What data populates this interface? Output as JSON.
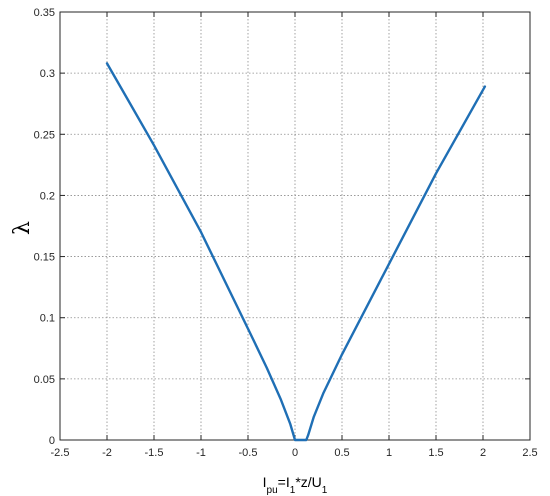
{
  "chart_data": {
    "type": "line",
    "xlabel": "I_pu=I_1*z/U_1",
    "xlabel_parts": [
      {
        "text": "I",
        "style": "normal"
      },
      {
        "text": "pu",
        "style": "sub"
      },
      {
        "text": "=I",
        "style": "normal"
      },
      {
        "text": "1",
        "style": "sub"
      },
      {
        "text": "*z/U",
        "style": "normal"
      },
      {
        "text": "1",
        "style": "sub"
      }
    ],
    "ylabel": "λ",
    "xlim": [
      -2.5,
      2.5
    ],
    "ylim": [
      0,
      0.35
    ],
    "xticks": [
      -2.5,
      -2,
      -1.5,
      -1,
      -0.5,
      0,
      0.5,
      1,
      1.5,
      2,
      2.5
    ],
    "xtick_labels": [
      "-2.5",
      "-2",
      "-1.5",
      "-1",
      "-0.5",
      "0",
      "0.5",
      "1",
      "1.5",
      "2",
      "2.5"
    ],
    "yticks": [
      0,
      0.05,
      0.1,
      0.15,
      0.2,
      0.25,
      0.3,
      0.35
    ],
    "ytick_labels": [
      "0",
      "0.05",
      "0.1",
      "0.15",
      "0.2",
      "0.25",
      "0.3",
      "0.35"
    ],
    "grid": true,
    "series": [
      {
        "color": "#1f6fb5",
        "x": [
          -2.0,
          -1.5,
          -1.0,
          -0.5,
          -0.3,
          -0.15,
          -0.05,
          0.0,
          0.12,
          0.14,
          0.2,
          0.3,
          0.5,
          1.0,
          1.5,
          2.02
        ],
        "y": [
          0.308,
          0.241,
          0.17,
          0.091,
          0.059,
          0.033,
          0.013,
          0.0,
          0.0,
          0.004,
          0.019,
          0.038,
          0.07,
          0.144,
          0.218,
          0.289
        ]
      }
    ]
  }
}
